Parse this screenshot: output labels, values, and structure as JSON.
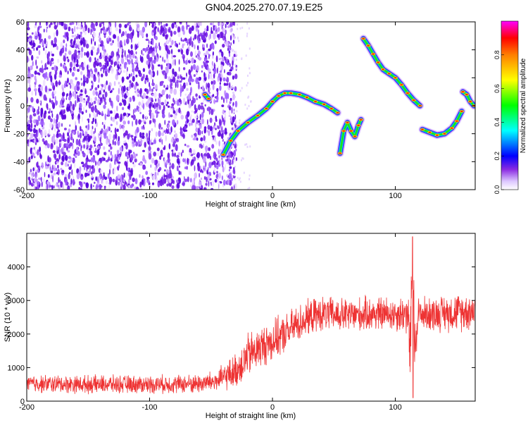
{
  "title": "GN04.2025.270.07.19.E25",
  "chart_data": [
    {
      "type": "heatmap",
      "xlabel": "Height of straight line (km)",
      "ylabel": "Frequency (Hz)",
      "xlim": [
        -200,
        165
      ],
      "ylim": [
        -60,
        60
      ],
      "xticks": [
        -200,
        -100,
        0,
        100
      ],
      "yticks": [
        -60,
        -40,
        -20,
        0,
        20,
        40,
        60
      ],
      "noise_region_x": [
        -200,
        -35
      ],
      "colorbar": {
        "label": "Normalized spectral amplitude",
        "range": [
          0,
          1
        ],
        "ticks": [
          0.0,
          0.2,
          0.4,
          0.6,
          0.8
        ],
        "colormap": [
          "#ffffff",
          "#c8a0ff",
          "#6a0dad",
          "#0000ff",
          "#00ffff",
          "#00ff00",
          "#ffff00",
          "#ff8000",
          "#ff0000",
          "#ff00ff"
        ]
      },
      "tracks": [
        {
          "x": [
            -40,
            -34,
            -28,
            -20,
            -12,
            -5,
            0,
            5,
            10,
            15,
            22,
            28,
            35,
            42,
            48,
            53
          ],
          "y": [
            -35,
            -25,
            -18,
            -12,
            -7,
            -2,
            3,
            7,
            9,
            9,
            8,
            6,
            3,
            1,
            -2,
            -5
          ]
        },
        {
          "x": [
            55,
            58,
            61,
            64,
            67,
            70,
            72
          ],
          "y": [
            -34,
            -18,
            -12,
            -18,
            -22,
            -14,
            -10
          ]
        },
        {
          "x": [
            74,
            78,
            82,
            86,
            90,
            95,
            100,
            105,
            110,
            115,
            120
          ],
          "y": [
            48,
            43,
            37,
            31,
            26,
            23,
            20,
            15,
            9,
            4,
            0
          ]
        },
        {
          "x": [
            122,
            128,
            134,
            140,
            146,
            150,
            154
          ],
          "y": [
            -17,
            -19,
            -21,
            -20,
            -16,
            -11,
            -4
          ]
        },
        {
          "x": [
            155,
            158,
            161,
            164
          ],
          "y": [
            10,
            8,
            3,
            0
          ]
        },
        {
          "x": [
            -55,
            -52
          ],
          "y": [
            8,
            5
          ]
        }
      ]
    },
    {
      "type": "line",
      "xlabel": "Height of straight line (km)",
      "ylabel": "SNR (10 * v/v)",
      "xlim": [
        -200,
        165
      ],
      "ylim": [
        0,
        5000
      ],
      "xticks": [
        -200,
        -100,
        0,
        100
      ],
      "yticks": [
        0,
        1000,
        2000,
        3000,
        4000
      ],
      "color": "#ee3333",
      "envelope": {
        "x": [
          -200,
          -150,
          -100,
          -60,
          -45,
          -30,
          -20,
          -10,
          0,
          10,
          20,
          30,
          40,
          60,
          80,
          100,
          110,
          112,
          114,
          116,
          118,
          120,
          130,
          150,
          165
        ],
        "mean": [
          520,
          500,
          500,
          520,
          600,
          900,
          1350,
          1600,
          1800,
          2000,
          2300,
          2500,
          2600,
          2550,
          2600,
          2600,
          2600,
          1500,
          3500,
          1500,
          2600,
          2600,
          2600,
          2650,
          2700
        ],
        "spread": [
          260,
          260,
          260,
          280,
          320,
          500,
          650,
          600,
          600,
          550,
          550,
          500,
          500,
          500,
          500,
          500,
          600,
          1300,
          1400,
          1300,
          600,
          500,
          500,
          550,
          550
        ],
        "peak": {
          "x": 114,
          "y": 4900
        },
        "dip": {
          "x": 114,
          "y": 100
        }
      }
    }
  ]
}
